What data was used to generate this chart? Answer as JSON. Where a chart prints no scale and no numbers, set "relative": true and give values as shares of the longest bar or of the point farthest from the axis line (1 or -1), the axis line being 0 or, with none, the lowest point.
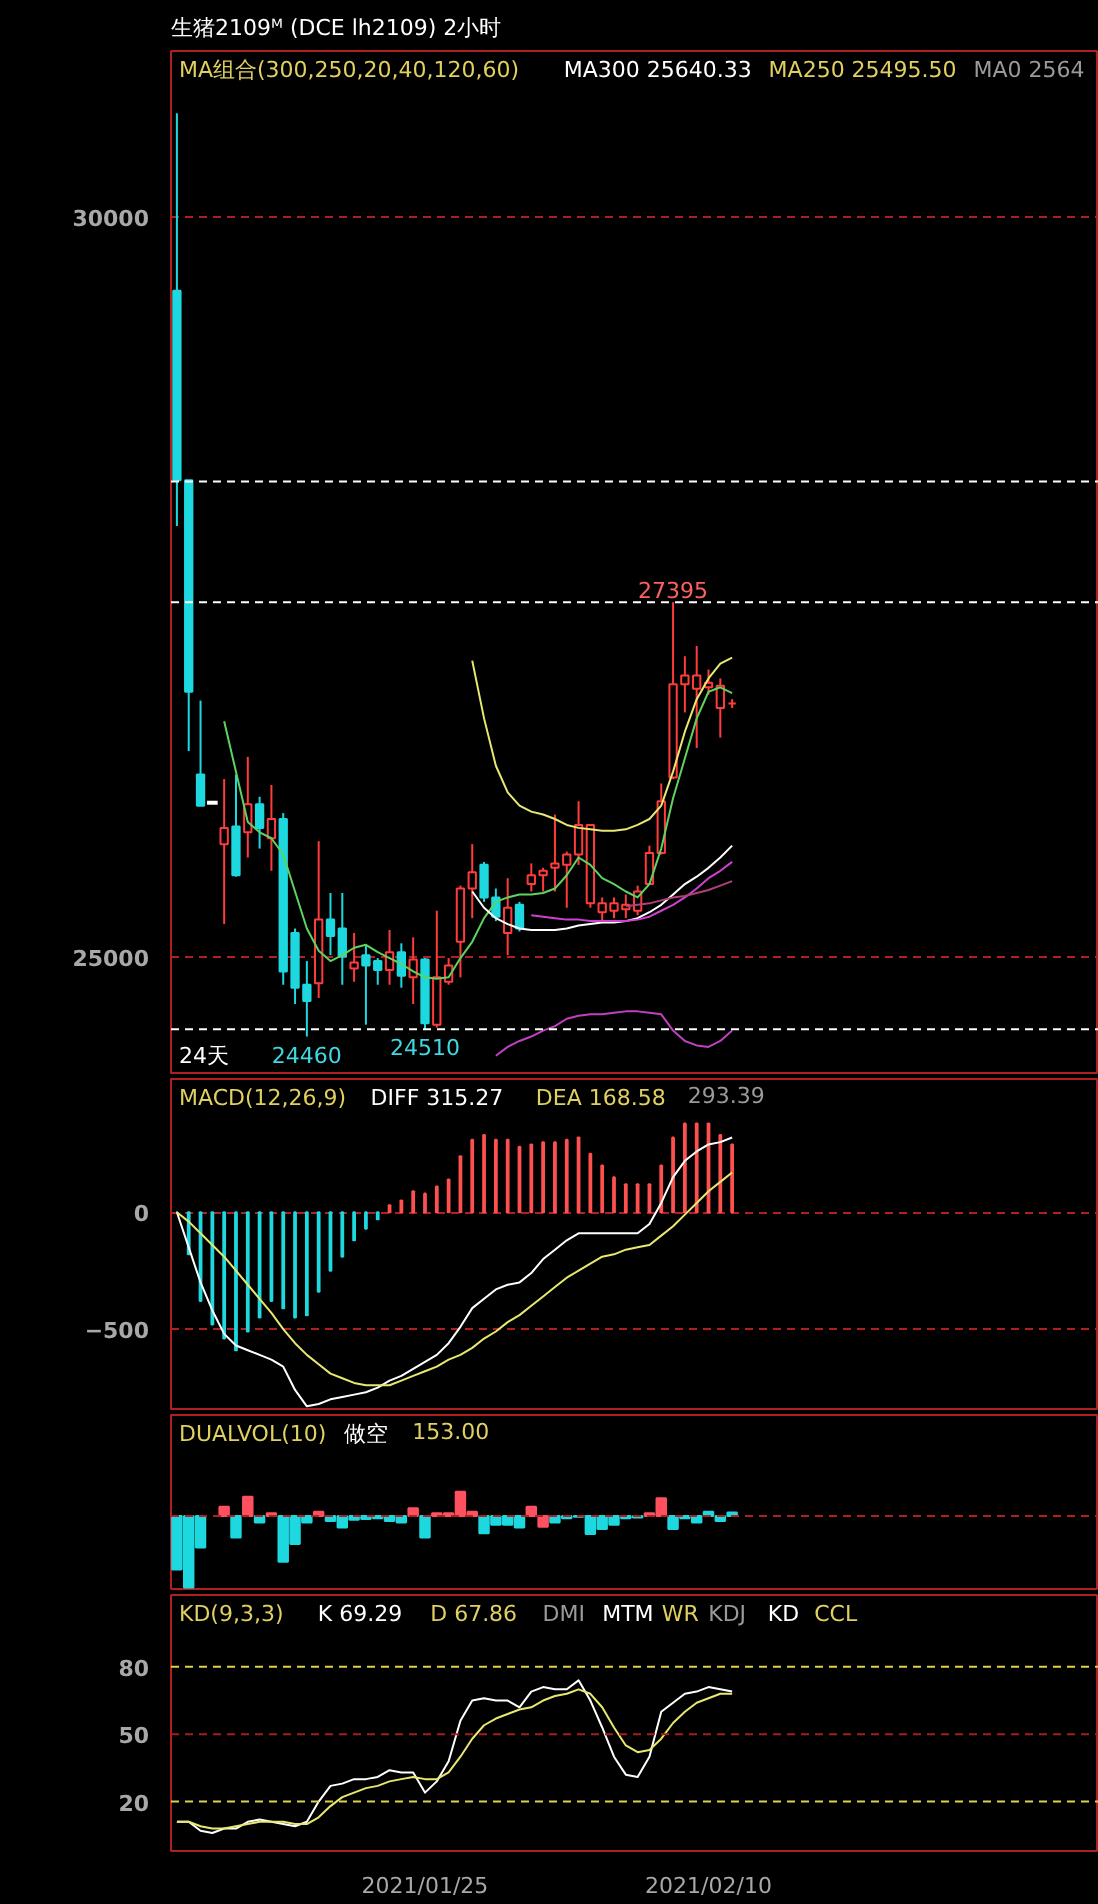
{
  "chart_data": [
    {
      "type": "candlestick",
      "title": "生猪2109ᴹ (DCE lh2109)  2小时",
      "subtitle": "MA组合(300,250,20,40,120,60)",
      "categories": [
        null,
        null,
        null,
        null,
        null,
        null,
        null,
        null,
        null,
        null,
        null,
        null,
        null,
        null,
        null,
        null,
        null,
        null,
        null,
        null,
        null,
        "2021/01/25",
        null,
        null,
        null,
        null,
        null,
        null,
        null,
        null,
        null,
        null,
        null,
        null,
        null,
        null,
        null,
        null,
        null,
        null,
        null,
        null,
        null,
        null,
        null,
        "2021/02/10",
        null,
        null
      ],
      "ohlc": [
        [
          29500,
          30700,
          27910,
          28220
        ],
        [
          28220,
          28220,
          26390,
          26790
        ],
        [
          26230,
          26730,
          26020,
          26020
        ],
        [
          26040,
          26040,
          26040,
          26040
        ],
        [
          25760,
          26200,
          25220,
          25870
        ],
        [
          25880,
          26230,
          25540,
          25550
        ],
        [
          25840,
          26350,
          25670,
          26030
        ],
        [
          26030,
          26080,
          25730,
          25870
        ],
        [
          25800,
          26160,
          25580,
          25930
        ],
        [
          25930,
          25970,
          24810,
          24900
        ],
        [
          25160,
          25190,
          24680,
          24790
        ],
        [
          24810,
          24970,
          24460,
          24700
        ],
        [
          24820,
          25780,
          24720,
          25250
        ],
        [
          25250,
          25430,
          25010,
          25140
        ],
        [
          25190,
          25430,
          24810,
          25000
        ],
        [
          24920,
          25160,
          24830,
          24960
        ],
        [
          25010,
          25080,
          24540,
          24940
        ],
        [
          24970,
          24990,
          24810,
          24910
        ],
        [
          24910,
          25180,
          24810,
          25030
        ],
        [
          25030,
          25090,
          24790,
          24870
        ],
        [
          24860,
          25130,
          24680,
          24980
        ],
        [
          24980,
          24990,
          24510,
          24550
        ],
        [
          24540,
          25310,
          24520,
          24860
        ],
        [
          24830,
          24990,
          24810,
          24940
        ],
        [
          25100,
          25480,
          24860,
          25460
        ],
        [
          25460,
          25760,
          25260,
          25570
        ],
        [
          25620,
          25640,
          25370,
          25400
        ],
        [
          25400,
          25460,
          25240,
          25270
        ],
        [
          25160,
          25530,
          25010,
          25330
        ],
        [
          25350,
          25370,
          25170,
          25190
        ],
        [
          25490,
          25630,
          25440,
          25550
        ],
        [
          25550,
          25600,
          25440,
          25580
        ],
        [
          25600,
          25960,
          25440,
          25630
        ],
        [
          25620,
          25710,
          25330,
          25690
        ],
        [
          25690,
          26050,
          25620,
          25890
        ],
        [
          25360,
          25890,
          25330,
          25890
        ],
        [
          25300,
          25400,
          25240,
          25360
        ],
        [
          25310,
          25400,
          25260,
          25360
        ],
        [
          25320,
          25420,
          25260,
          25350
        ],
        [
          25310,
          25480,
          25280,
          25440
        ],
        [
          25490,
          25750,
          25490,
          25700
        ],
        [
          25700,
          26170,
          25690,
          26050
        ],
        [
          26210,
          27395,
          26200,
          26840
        ],
        [
          26840,
          27030,
          26650,
          26900
        ],
        [
          26810,
          27100,
          26410,
          26900
        ],
        [
          26820,
          26940,
          26770,
          26850
        ],
        [
          26680,
          26880,
          26480,
          26830
        ],
        [
          26710,
          26740,
          26680,
          26710
        ]
      ],
      "colors": [
        "#1ed8e0",
        "#1ed8e0",
        "#1ed8e0",
        "#ffffff",
        "#ff3c3c",
        "#1ed8e0",
        "#ff3c3c",
        "#1ed8e0",
        "#ff3c3c",
        "#1ed8e0",
        "#1ed8e0",
        "#1ed8e0",
        "#ff3c3c",
        "#1ed8e0",
        "#1ed8e0",
        "#ff3c3c",
        "#1ed8e0",
        "#1ed8e0",
        "#ff3c3c",
        "#1ed8e0",
        "#ff3c3c",
        "#1ed8e0",
        "#ff3c3c",
        "#ff3c3c",
        "#ff3c3c",
        "#ff3c3c",
        "#1ed8e0",
        "#1ed8e0",
        "#ff3c3c",
        "#1ed8e0",
        "#ff3c3c",
        "#ff3c3c",
        "#ff3c3c",
        "#ff3c3c",
        "#ff3c3c",
        "#ff3c3c",
        "#ff3c3c",
        "#ff3c3c",
        "#ff3c3c",
        "#ff3c3c",
        "#ff3c3c",
        "#ff3c3c",
        "#ff3c3c",
        "#ff3c3c",
        "#ff3c3c",
        "#ff3c3c",
        "#ff3c3c",
        "#ff3c3c"
      ],
      "series": [
        {
          "type": "line",
          "color": "#5fd35f",
          "values": [
            null,
            null,
            null,
            null,
            26590,
            26250,
            25910,
            25840,
            25800,
            25690,
            25440,
            25190,
            25040,
            24970,
            25010,
            25060,
            25080,
            25030,
            24990,
            24950,
            24900,
            24860,
            24850,
            24860,
            24990,
            25100,
            25260,
            25370,
            25400,
            25420,
            25420,
            25430,
            25460,
            25550,
            25670,
            25620,
            25530,
            25490,
            25440,
            25400,
            25490,
            25730,
            26070,
            26340,
            26610,
            26790,
            26820,
            26780
          ]
        },
        {
          "type": "line",
          "color": "#e8e870",
          "values": [
            null,
            null,
            null,
            null,
            null,
            null,
            null,
            null,
            null,
            null,
            null,
            null,
            null,
            null,
            null,
            null,
            null,
            null,
            null,
            null,
            null,
            null,
            null,
            null,
            null,
            27000,
            26610,
            26290,
            26110,
            26020,
            25980,
            25960,
            25930,
            25890,
            25870,
            25860,
            25850,
            25850,
            25860,
            25890,
            25930,
            26020,
            26250,
            26520,
            26740,
            26880,
            26980,
            27020
          ]
        },
        {
          "type": "line",
          "color": "#ffffff",
          "values": [
            null,
            null,
            null,
            null,
            null,
            null,
            null,
            null,
            null,
            null,
            null,
            null,
            null,
            null,
            null,
            null,
            null,
            null,
            null,
            null,
            null,
            null,
            null,
            null,
            null,
            25440,
            25330,
            25260,
            25220,
            25190,
            25180,
            25180,
            25180,
            25190,
            25210,
            25220,
            25230,
            25230,
            25240,
            25260,
            25300,
            25350,
            25420,
            25490,
            25540,
            25600,
            25670,
            25750
          ]
        },
        {
          "type": "line",
          "color": "#d040d0",
          "values": [
            null,
            null,
            null,
            null,
            null,
            null,
            null,
            null,
            null,
            null,
            null,
            null,
            null,
            null,
            null,
            null,
            null,
            null,
            null,
            null,
            null,
            null,
            null,
            null,
            null,
            null,
            null,
            null,
            null,
            null,
            25280,
            25270,
            25260,
            25250,
            25250,
            25240,
            25240,
            25240,
            25240,
            25250,
            25270,
            25310,
            25350,
            25400,
            25460,
            25530,
            25580,
            25640
          ]
        },
        {
          "type": "line",
          "color": "#b0407a",
          "values": [
            null,
            null,
            null,
            null,
            null,
            null,
            null,
            null,
            null,
            null,
            null,
            null,
            null,
            null,
            null,
            null,
            null,
            null,
            null,
            null,
            null,
            null,
            null,
            null,
            null,
            null,
            null,
            null,
            null,
            null,
            null,
            null,
            null,
            null,
            null,
            null,
            null,
            null,
            25340,
            25350,
            25360,
            25380,
            25400,
            25410,
            25430,
            25450,
            25480,
            25510
          ]
        },
        {
          "type": "line",
          "color": "#c040c0",
          "values": [
            null,
            null,
            null,
            null,
            null,
            null,
            null,
            null,
            null,
            null,
            null,
            null,
            null,
            null,
            null,
            null,
            null,
            null,
            null,
            null,
            null,
            null,
            null,
            null,
            null,
            null,
            null,
            24330,
            24390,
            24430,
            24460,
            24500,
            24530,
            24580,
            24600,
            24610,
            24610,
            24620,
            24630,
            24630,
            24620,
            24610,
            24500,
            24430,
            24400,
            24390,
            24430,
            24500
          ]
        }
      ],
      "ylim": [
        24200,
        31120
      ],
      "yticks": [
        25000,
        30000
      ],
      "grid": "y",
      "tick_labels": "y",
      "ref_lines": [
        {
          "axis": "y",
          "value": 28210,
          "label": null,
          "color": "#ffffff",
          "line_style": "dashed"
        },
        {
          "axis": "y",
          "value": 27395,
          "label": null,
          "color": "#ffffff",
          "line_style": "dashed"
        },
        {
          "axis": "y",
          "value": 24510,
          "label": null,
          "color": "#ffffff",
          "line_style": "dashed"
        }
      ],
      "annotations": [
        "MA300 25640.33",
        "MA250 25495.50",
        "MA0 2564",
        "24天",
        {
          "text": "27395",
          "y": 27395
        },
        {
          "text": "24460",
          "y": 24460
        },
        {
          "text": "24510",
          "y": 24510
        }
      ]
    },
    {
      "type": "bar",
      "title": "MACD(12,26,9)",
      "categories": [
        null,
        null,
        null,
        null,
        null,
        null,
        null,
        null,
        null,
        null,
        null,
        null,
        null,
        null,
        null,
        null,
        null,
        null,
        null,
        null,
        null,
        "2021/01/25",
        null,
        null,
        null,
        null,
        null,
        null,
        null,
        null,
        null,
        null,
        null,
        null,
        null,
        null,
        null,
        null,
        null,
        null,
        null,
        null,
        null,
        null,
        null,
        "2021/02/10",
        null,
        null
      ],
      "series": [
        {
          "type": "bar",
          "colors": [
            "#1ed8e0",
            "#1ed8e0",
            "#1ed8e0",
            "#1ed8e0",
            "#1ed8e0",
            "#1ed8e0",
            "#1ed8e0",
            "#1ed8e0",
            "#1ed8e0",
            "#1ed8e0",
            "#1ed8e0",
            "#1ed8e0",
            "#1ed8e0",
            "#1ed8e0",
            "#1ed8e0",
            "#1ed8e0",
            "#1ed8e0",
            "#1ed8e0",
            "#ff5050",
            "#ff5050",
            "#ff5050",
            "#ff5050",
            "#ff5050",
            "#ff5050",
            "#ff5050",
            "#ff5050",
            "#ff5050",
            "#ff5050",
            "#ff5050",
            "#ff5050",
            "#ff5050",
            "#ff5050",
            "#ff5050",
            "#ff5050",
            "#ff5050",
            "#ff5050",
            "#ff5050",
            "#ff5050",
            "#ff5050",
            "#ff5050",
            "#ff5050",
            "#ff5050",
            "#ff5050",
            "#ff5050",
            "#ff5050",
            "#ff5050",
            "#ff5050",
            "#ff5050"
          ],
          "values": [
            0,
            -180,
            -380,
            -480,
            -540,
            -590,
            -510,
            -450,
            -380,
            -410,
            -450,
            -440,
            -340,
            -250,
            -190,
            -120,
            -70,
            -30,
            30,
            50,
            90,
            80,
            110,
            140,
            240,
            310,
            330,
            310,
            310,
            280,
            290,
            300,
            300,
            310,
            320,
            250,
            200,
            150,
            120,
            120,
            120,
            200,
            320,
            380,
            380,
            380,
            330,
            290
          ]
        },
        {
          "type": "line",
          "color": "#ffffff",
          "values": [
            0,
            -150,
            -300,
            -420,
            -520,
            -570,
            -590,
            -610,
            -630,
            -660,
            -760,
            -830,
            -820,
            -800,
            -790,
            -780,
            -770,
            -750,
            -720,
            -700,
            -670,
            -640,
            -610,
            -560,
            -490,
            -410,
            -370,
            -330,
            -310,
            -300,
            -260,
            -200,
            -160,
            -120,
            -90,
            -90,
            -90,
            -90,
            -90,
            -90,
            -50,
            40,
            150,
            220,
            260,
            290,
            300,
            320
          ]
        },
        {
          "type": "line",
          "color": "#e8e870",
          "values": [
            0,
            -40,
            -90,
            -140,
            -190,
            -250,
            -310,
            -370,
            -430,
            -500,
            -560,
            -610,
            -650,
            -690,
            -710,
            -730,
            -740,
            -740,
            -740,
            -720,
            -700,
            -680,
            -660,
            -630,
            -610,
            -580,
            -540,
            -510,
            -470,
            -440,
            -400,
            -360,
            -320,
            -280,
            -250,
            -220,
            -190,
            -180,
            -160,
            -150,
            -140,
            -100,
            -60,
            -10,
            40,
            90,
            130,
            170
          ]
        }
      ],
      "ylim": [
        -850,
        570
      ],
      "yticks": [
        0,
        -500
      ],
      "grid": "y",
      "tick_labels": "y",
      "annotations": [
        "DIFF 315.27",
        "DEA 168.58",
        "293.39"
      ]
    },
    {
      "type": "bar",
      "title": "DUALVOL(10)",
      "relative": true,
      "categories": [
        null,
        null,
        null,
        null,
        null,
        null,
        null,
        null,
        null,
        null,
        null,
        null,
        null,
        null,
        null,
        null,
        null,
        null,
        null,
        null,
        null,
        "2021/01/25",
        null,
        null,
        null,
        null,
        null,
        null,
        null,
        null,
        null,
        null,
        null,
        null,
        null,
        null,
        null,
        null,
        null,
        null,
        null,
        null,
        null,
        null,
        null,
        "2021/02/10",
        null,
        null
      ],
      "values": [
        -0.75,
        -1,
        -0.44,
        null,
        0.13,
        -0.3,
        0.27,
        -0.09,
        0.04,
        -0.64,
        -0.39,
        -0.09,
        0.06,
        -0.07,
        -0.16,
        -0.05,
        -0.04,
        -0.03,
        -0.07,
        -0.09,
        0.11,
        -0.3,
        0.04,
        0.04,
        0.34,
        0.06,
        -0.24,
        -0.12,
        -0.12,
        -0.16,
        0.13,
        -0.15,
        -0.09,
        -0.03,
        -0.01,
        -0.25,
        -0.18,
        -0.12,
        -0.03,
        -0.02,
        0.04,
        0.25,
        -0.18,
        -0.03,
        -0.09,
        0.06,
        -0.07,
        0.05
      ],
      "colors": [
        "#1ed8e0",
        "#1ed8e0",
        "#1ed8e0",
        "#1ed8e0",
        "#ff5060",
        "#1ed8e0",
        "#ff5060",
        "#1ed8e0",
        "#ff5060",
        "#1ed8e0",
        "#1ed8e0",
        "#1ed8e0",
        "#ff5060",
        "#1ed8e0",
        "#1ed8e0",
        "#1ed8e0",
        "#1ed8e0",
        "#1ed8e0",
        "#1ed8e0",
        "#1ed8e0",
        "#ff5060",
        "#1ed8e0",
        "#ff5060",
        "#ff5060",
        "#ff5060",
        "#ff5060",
        "#1ed8e0",
        "#1ed8e0",
        "#1ed8e0",
        "#1ed8e0",
        "#ff5060",
        "#ff5060",
        "#1ed8e0",
        "#1ed8e0",
        "#1ed8e0",
        "#1ed8e0",
        "#1ed8e0",
        "#1ed8e0",
        "#1ed8e0",
        "#1ed8e0",
        "#ff5060",
        "#ff5060",
        "#1ed8e0",
        "#1ed8e0",
        "#1ed8e0",
        "#1ed8e0",
        "#1ed8e0",
        "#1ed8e0"
      ],
      "tick_labels": false,
      "ref_lines": [
        {
          "axis": "y",
          "value": 0,
          "label": null,
          "color": "#b02020",
          "line_style": "dashed"
        }
      ],
      "annotations": [
        "做空",
        "153.00"
      ]
    },
    {
      "type": "line",
      "title": "KD(9,3,3)",
      "categories": [
        null,
        null,
        null,
        null,
        null,
        null,
        null,
        null,
        null,
        null,
        null,
        null,
        null,
        null,
        null,
        null,
        null,
        null,
        null,
        null,
        null,
        "2021/01/25",
        null,
        null,
        null,
        null,
        null,
        null,
        null,
        null,
        null,
        null,
        null,
        null,
        null,
        null,
        null,
        null,
        null,
        null,
        null,
        null,
        null,
        null,
        null,
        "2021/02/10",
        null,
        null
      ],
      "series": [
        {
          "color": "#ffffff",
          "values": [
            11,
            11,
            7,
            6,
            8,
            8,
            11,
            12,
            11,
            10,
            9,
            11,
            20,
            27,
            28,
            30,
            30,
            31,
            34,
            33,
            33,
            24,
            29,
            38,
            56,
            65,
            66,
            65,
            65,
            62,
            69,
            71,
            70,
            70,
            74,
            65,
            53,
            40,
            32,
            31,
            40,
            60,
            64,
            68,
            69,
            71,
            70,
            69
          ]
        },
        {
          "color": "#e8e870",
          "values": [
            11,
            11,
            9,
            8,
            8,
            9,
            10,
            11,
            11,
            11,
            10,
            10,
            13,
            18,
            22,
            24,
            26,
            27,
            29,
            30,
            31,
            30,
            30,
            33,
            40,
            48,
            54,
            57,
            59,
            61,
            62,
            65,
            67,
            68,
            70,
            68,
            62,
            53,
            45,
            42,
            43,
            48,
            55,
            60,
            64,
            66,
            68,
            68
          ]
        }
      ],
      "ylim": [
        -2,
        112
      ],
      "yticks": [
        20,
        50,
        80
      ],
      "ref_lines": [
        {
          "axis": "y",
          "value": 80,
          "label": null,
          "color": "#e0d050",
          "line_style": "dashed"
        },
        {
          "axis": "y",
          "value": 50,
          "label": null,
          "color": "#a02020",
          "line_style": "dashed"
        },
        {
          "axis": "y",
          "value": 20,
          "label": null,
          "color": "#e0d050",
          "line_style": "dashed"
        }
      ],
      "annotations": [
        "K 69.29",
        "D 67.86",
        "DMI",
        "MTM",
        "WR",
        "KDJ",
        "KD",
        "CCL"
      ]
    }
  ]
}
